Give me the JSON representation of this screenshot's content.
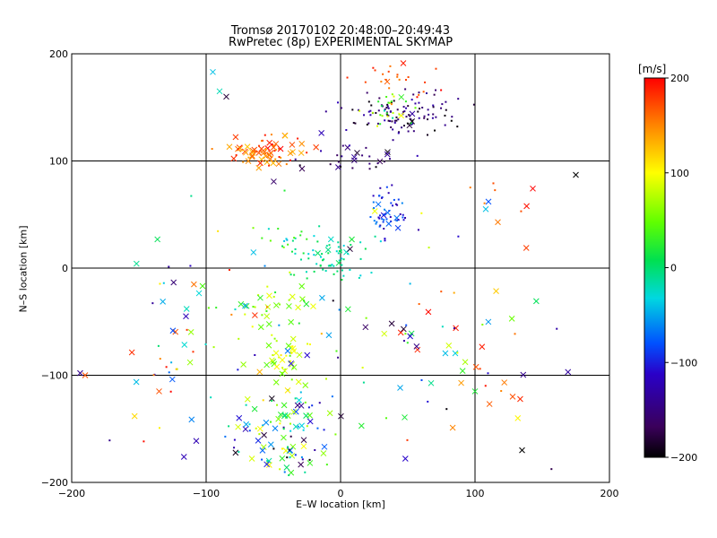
{
  "chart_data": {
    "type": "scatter",
    "title": "Tromsø 20170102 20:48:00–20:49:43",
    "subtitle": "RwPretec (8p) EXPERIMENTAL SKYMAP",
    "xlabel": "E–W location [km]",
    "ylabel": "N–S location [km]",
    "xlim": [
      -200,
      200
    ],
    "ylim": [
      -200,
      200
    ],
    "xticks": [
      -200,
      -100,
      0,
      100,
      200
    ],
    "yticks": [
      -200,
      -100,
      0,
      100,
      200
    ],
    "grid": true,
    "colorbar": {
      "label": "[m/s]",
      "range": [
        -200,
        200
      ],
      "ticks": [
        200,
        100,
        0,
        -100,
        -200
      ],
      "colormap": "rainbow (black-purple-blue-cyan-green-yellow-red)"
    },
    "clusters": [
      {
        "cx": -55,
        "cy": 110,
        "sx": 14,
        "sy": 7,
        "n": 70,
        "vmin": 120,
        "vmax": 200,
        "cross": 0.5
      },
      {
        "cx": 45,
        "cy": 145,
        "sx": 22,
        "sy": 10,
        "n": 110,
        "vmin": -200,
        "vmax": -120,
        "cross": 0.05
      },
      {
        "cx": 35,
        "cy": 150,
        "sx": 10,
        "sy": 8,
        "n": 25,
        "vmin": -20,
        "vmax": 100,
        "cross": 0.05
      },
      {
        "cx": 45,
        "cy": 180,
        "sx": 18,
        "sy": 10,
        "n": 25,
        "vmin": 150,
        "vmax": 200,
        "cross": 0.1
      },
      {
        "cx": 35,
        "cy": 50,
        "sx": 8,
        "sy": 12,
        "n": 55,
        "vmin": -130,
        "vmax": -60,
        "cross": 0.1
      },
      {
        "cx": -5,
        "cy": 10,
        "sx": 14,
        "sy": 10,
        "n": 65,
        "vmin": -40,
        "vmax": 20,
        "cross": 0.1
      },
      {
        "cx": -40,
        "cy": 25,
        "sx": 10,
        "sy": 10,
        "n": 20,
        "vmin": -50,
        "vmax": 60,
        "cross": 0.1
      },
      {
        "cx": -40,
        "cy": -85,
        "sx": 8,
        "sy": 15,
        "n": 40,
        "vmin": 40,
        "vmax": 110,
        "cross": 0.5
      },
      {
        "cx": -55,
        "cy": -35,
        "sx": 20,
        "sy": 10,
        "n": 35,
        "vmin": 20,
        "vmax": 100,
        "cross": 0.5
      },
      {
        "cx": -45,
        "cy": -150,
        "sx": 20,
        "sy": 25,
        "n": 110,
        "vmin": -200,
        "vmax": 120,
        "cross": 0.5
      },
      {
        "cx": 10,
        "cy": 100,
        "sx": 25,
        "sy": 8,
        "n": 30,
        "vmin": -200,
        "vmax": -120,
        "cross": 0.2
      },
      {
        "cx": 60,
        "cy": -70,
        "sx": 30,
        "sy": 30,
        "n": 30,
        "vmin": -200,
        "vmax": 200,
        "cross": 0.6
      },
      {
        "cx": -120,
        "cy": -60,
        "sx": 35,
        "sy": 45,
        "n": 45,
        "vmin": -150,
        "vmax": 200,
        "cross": 0.5
      },
      {
        "cx": 0,
        "cy": -60,
        "sx": 90,
        "sy": 70,
        "n": 60,
        "vmin": -200,
        "vmax": 200,
        "cross": 0.5
      },
      {
        "cx": 120,
        "cy": 60,
        "sx": 20,
        "sy": 15,
        "n": 8,
        "vmin": 150,
        "vmax": 200,
        "cross": 0.4
      },
      {
        "cx": 120,
        "cy": -110,
        "sx": 30,
        "sy": 15,
        "n": 6,
        "vmin": 150,
        "vmax": 200,
        "cross": 0.6
      }
    ],
    "points": [
      {
        "x": 175,
        "y": 87,
        "v": -200,
        "m": "x"
      },
      {
        "x": 135,
        "y": -170,
        "v": -200,
        "m": "x"
      },
      {
        "x": -95,
        "y": 183,
        "v": -40,
        "m": "x"
      },
      {
        "x": -90,
        "y": 165,
        "v": -20,
        "m": "x"
      },
      {
        "x": -85,
        "y": 160,
        "v": -180,
        "m": "x"
      },
      {
        "x": -190,
        "y": -100,
        "v": 170,
        "m": "x"
      },
      {
        "x": -135,
        "y": -115,
        "v": 170,
        "m": "x"
      },
      {
        "x": -115,
        "y": -45,
        "v": -120,
        "m": "x"
      },
      {
        "x": 110,
        "y": 62,
        "v": -80,
        "m": "x"
      },
      {
        "x": 108,
        "y": 55,
        "v": -40,
        "m": "x"
      },
      {
        "x": 100,
        "y": -115,
        "v": 20,
        "m": "x"
      },
      {
        "x": 128,
        "y": -120,
        "v": 170,
        "m": "x"
      }
    ]
  }
}
